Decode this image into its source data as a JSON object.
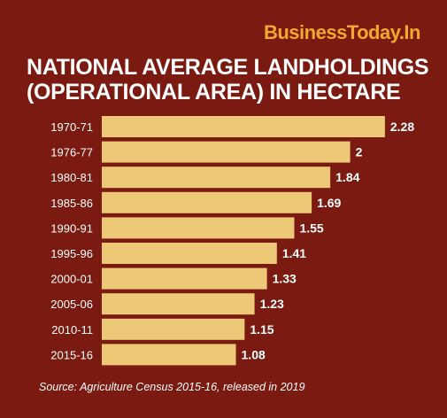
{
  "brand": {
    "name": "BusinessToday.In",
    "color": "#f0a830"
  },
  "title": {
    "line1": "NATIONAL AVERAGE LANDHOLDINGS",
    "line2": "(OPERATIONAL AREA) IN HECTARE"
  },
  "colors": {
    "background": "#7a1a10",
    "bar": "#ecc877",
    "text": "#ffffff"
  },
  "chart_data": {
    "type": "bar",
    "orientation": "horizontal",
    "title": "NATIONAL AVERAGE LANDHOLDINGS (OPERATIONAL AREA) IN HECTARE",
    "categories": [
      "1970-71",
      "1976-77",
      "1980-81",
      "1985-86",
      "1990-91",
      "1995-96",
      "2000-01",
      "2005-06",
      "2010-11",
      "2015-16"
    ],
    "values": [
      2.28,
      2,
      1.84,
      1.69,
      1.55,
      1.41,
      1.33,
      1.23,
      1.15,
      1.08
    ],
    "value_labels": [
      "2.28",
      "2",
      "1.84",
      "1.69",
      "1.55",
      "1.41",
      "1.33",
      "1.23",
      "1.15",
      "1.08"
    ],
    "xlabel": "",
    "ylabel": "",
    "grid": false,
    "legend": "none"
  },
  "source": "Source: Agriculture Census 2015-16, released in 2019"
}
